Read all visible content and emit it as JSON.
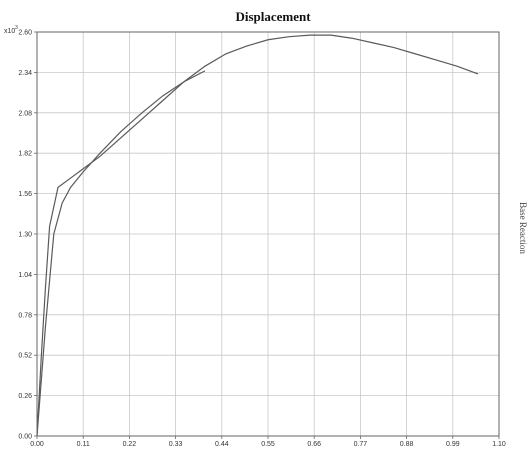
{
  "chart_data": {
    "type": "line",
    "title": "Displacement",
    "multiplier_label": "x10",
    "multiplier_exp": "3",
    "right_label": "Base Reaction",
    "x_ticks": [
      "0.00",
      "0.11",
      "0.22",
      "0.33",
      "0.44",
      "0.55",
      "0.66",
      "0.77",
      "0.88",
      "0.99",
      "1.10"
    ],
    "y_ticks": [
      "0.00",
      "0.26",
      "0.52",
      "0.78",
      "1.04",
      "1.30",
      "1.56",
      "1.82",
      "2.08",
      "2.34",
      "2.60"
    ],
    "xlim": [
      0,
      1.1
    ],
    "ylim": [
      0,
      2.6
    ],
    "grid": true,
    "series": [
      {
        "x": [
          0,
          0.01,
          0.02,
          0.03,
          0.05,
          0.08,
          0.11,
          0.15,
          0.2,
          0.25,
          0.3,
          0.35,
          0.4,
          0.45,
          0.5,
          0.55,
          0.6,
          0.65,
          0.7,
          0.75,
          0.8,
          0.85,
          0.9,
          0.95,
          1.0,
          1.05
        ],
        "y": [
          0,
          0.5,
          0.95,
          1.35,
          1.6,
          1.66,
          1.72,
          1.8,
          1.92,
          2.04,
          2.16,
          2.28,
          2.38,
          2.46,
          2.51,
          2.55,
          2.57,
          2.58,
          2.58,
          2.56,
          2.53,
          2.5,
          2.46,
          2.42,
          2.38,
          2.33
        ]
      },
      {
        "x": [
          0,
          0.02,
          0.04,
          0.06,
          0.08,
          0.11,
          0.15,
          0.2,
          0.25,
          0.3,
          0.35,
          0.4
        ],
        "y": [
          0,
          0.7,
          1.3,
          1.5,
          1.6,
          1.7,
          1.82,
          1.96,
          2.08,
          2.19,
          2.28,
          2.35
        ]
      }
    ]
  }
}
